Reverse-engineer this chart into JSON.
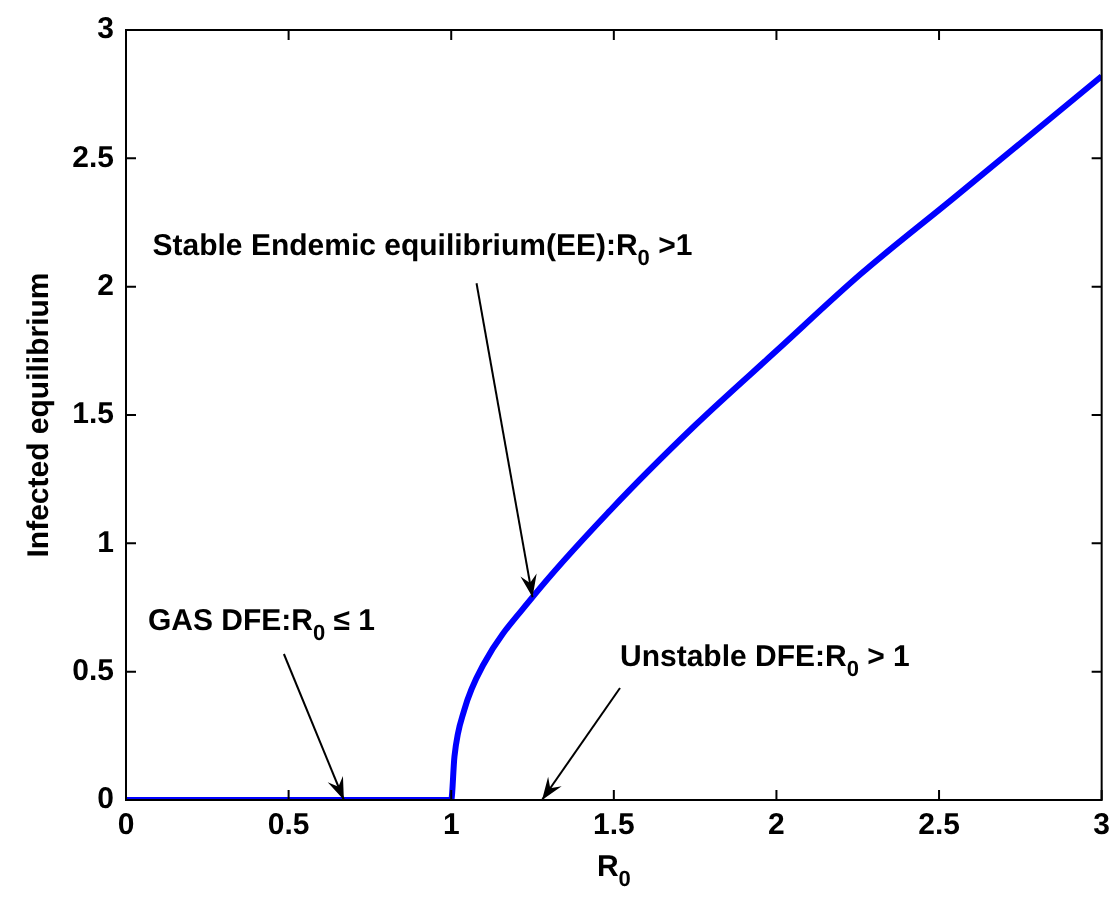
{
  "chart_data": {
    "type": "line",
    "xlabel": "R$_{0}$",
    "ylabel": "Infected equilibrium",
    "xlim": [
      0,
      3
    ],
    "ylim": [
      0,
      3
    ],
    "xticks": [
      0,
      0.5,
      1,
      1.5,
      2,
      2.5,
      3
    ],
    "yticks": [
      0,
      0.5,
      1,
      1.5,
      2,
      2.5,
      3
    ],
    "grid": false,
    "legend": false,
    "marker": "none",
    "line_style": "solid",
    "series": [
      {
        "color": "#0000ff",
        "x": [
          0,
          0.5,
          1,
          1.01,
          1.04,
          1.1,
          1.25,
          1.49,
          1.75,
          2,
          2.26,
          2.54,
          3
        ],
        "values": [
          0,
          0,
          0,
          0.17,
          0.35,
          0.53,
          0.79,
          1.13,
          1.46,
          1.75,
          2.05,
          2.34,
          2.82
        ]
      }
    ],
    "annotations": [
      {
        "text": "Stable Endemic equilibrium(EE):R$_{0}$ >1",
        "x": 1.25,
        "y": 0.79
      },
      {
        "text": "GAS DFE:R$_{0}$ ≤ 1",
        "x": 0.67,
        "y": 0
      },
      "Unstable DFE:R$_{0}$ > 1"
    ]
  }
}
